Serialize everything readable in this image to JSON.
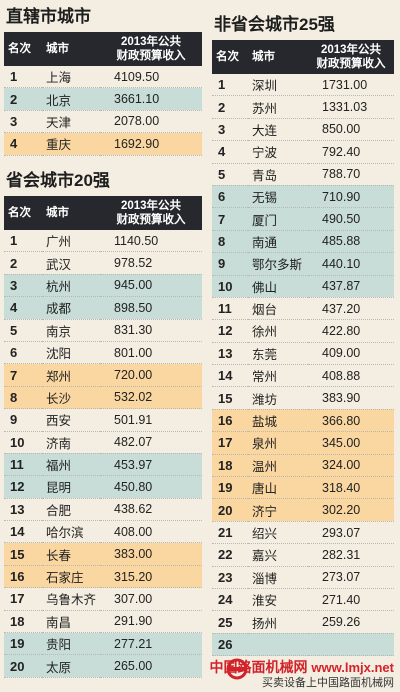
{
  "chart_data": [
    {
      "type": "table",
      "title": "直辖市城市",
      "columns": [
        "名次",
        "城市",
        "2013年公共财政预算收入"
      ],
      "rows": [
        {
          "rank": "1",
          "city": "上海",
          "value": "4109.50",
          "hl": "none"
        },
        {
          "rank": "2",
          "city": "北京",
          "value": "3661.10",
          "hl": "teal"
        },
        {
          "rank": "3",
          "city": "天津",
          "value": "2078.00",
          "hl": "none"
        },
        {
          "rank": "4",
          "city": "重庆",
          "value": "1692.90",
          "hl": "orange"
        }
      ]
    },
    {
      "type": "table",
      "title": "省会城市20强",
      "columns": [
        "名次",
        "城市",
        "2013年公共财政预算收入"
      ],
      "rows": [
        {
          "rank": "1",
          "city": "广州",
          "value": "1140.50",
          "hl": "none"
        },
        {
          "rank": "2",
          "city": "武汉",
          "value": "978.52",
          "hl": "none"
        },
        {
          "rank": "3",
          "city": "杭州",
          "value": "945.00",
          "hl": "teal"
        },
        {
          "rank": "4",
          "city": "成都",
          "value": "898.50",
          "hl": "teal"
        },
        {
          "rank": "5",
          "city": "南京",
          "value": "831.30",
          "hl": "none"
        },
        {
          "rank": "6",
          "city": "沈阳",
          "value": "801.00",
          "hl": "none"
        },
        {
          "rank": "7",
          "city": "郑州",
          "value": "720.00",
          "hl": "orange"
        },
        {
          "rank": "8",
          "city": "长沙",
          "value": "532.02",
          "hl": "orange"
        },
        {
          "rank": "9",
          "city": "西安",
          "value": "501.91",
          "hl": "none"
        },
        {
          "rank": "10",
          "city": "济南",
          "value": "482.07",
          "hl": "none"
        },
        {
          "rank": "11",
          "city": "福州",
          "value": "453.97",
          "hl": "teal"
        },
        {
          "rank": "12",
          "city": "昆明",
          "value": "450.80",
          "hl": "teal"
        },
        {
          "rank": "13",
          "city": "合肥",
          "value": "438.62",
          "hl": "none"
        },
        {
          "rank": "14",
          "city": "哈尔滨",
          "value": "408.00",
          "hl": "none"
        },
        {
          "rank": "15",
          "city": "长春",
          "value": "383.00",
          "hl": "orange"
        },
        {
          "rank": "16",
          "city": "石家庄",
          "value": "315.20",
          "hl": "orange"
        },
        {
          "rank": "17",
          "city": "乌鲁木齐",
          "value": "307.00",
          "hl": "none"
        },
        {
          "rank": "18",
          "city": "南昌",
          "value": "291.90",
          "hl": "none"
        },
        {
          "rank": "19",
          "city": "贵阳",
          "value": "277.21",
          "hl": "teal"
        },
        {
          "rank": "20",
          "city": "太原",
          "value": "265.00",
          "hl": "teal"
        }
      ]
    },
    {
      "type": "table",
      "title": "非省会城市25强",
      "columns": [
        "名次",
        "城市",
        "2013年公共财政预算收入"
      ],
      "rows": [
        {
          "rank": "1",
          "city": "深圳",
          "value": "1731.00",
          "hl": "none"
        },
        {
          "rank": "2",
          "city": "苏州",
          "value": "1331.03",
          "hl": "none"
        },
        {
          "rank": "3",
          "city": "大连",
          "value": "850.00",
          "hl": "none"
        },
        {
          "rank": "4",
          "city": "宁波",
          "value": "792.40",
          "hl": "none"
        },
        {
          "rank": "5",
          "city": "青岛",
          "value": "788.70",
          "hl": "none"
        },
        {
          "rank": "6",
          "city": "无锡",
          "value": "710.90",
          "hl": "teal"
        },
        {
          "rank": "7",
          "city": "厦门",
          "value": "490.50",
          "hl": "teal"
        },
        {
          "rank": "8",
          "city": "南通",
          "value": "485.88",
          "hl": "teal"
        },
        {
          "rank": "9",
          "city": "鄂尔多斯",
          "value": "440.10",
          "hl": "teal"
        },
        {
          "rank": "10",
          "city": "佛山",
          "value": "437.87",
          "hl": "teal"
        },
        {
          "rank": "11",
          "city": "烟台",
          "value": "437.20",
          "hl": "none"
        },
        {
          "rank": "12",
          "city": "徐州",
          "value": "422.80",
          "hl": "none"
        },
        {
          "rank": "13",
          "city": "东莞",
          "value": "409.00",
          "hl": "none"
        },
        {
          "rank": "14",
          "city": "常州",
          "value": "408.88",
          "hl": "none"
        },
        {
          "rank": "15",
          "city": "潍坊",
          "value": "383.90",
          "hl": "none"
        },
        {
          "rank": "16",
          "city": "盐城",
          "value": "366.80",
          "hl": "orange"
        },
        {
          "rank": "17",
          "city": "泉州",
          "value": "345.00",
          "hl": "orange"
        },
        {
          "rank": "18",
          "city": "温州",
          "value": "324.00",
          "hl": "orange"
        },
        {
          "rank": "19",
          "city": "唐山",
          "value": "318.40",
          "hl": "orange"
        },
        {
          "rank": "20",
          "city": "济宁",
          "value": "302.20",
          "hl": "orange"
        },
        {
          "rank": "21",
          "city": "绍兴",
          "value": "293.07",
          "hl": "none"
        },
        {
          "rank": "22",
          "city": "嘉兴",
          "value": "282.31",
          "hl": "none"
        },
        {
          "rank": "23",
          "city": "淄博",
          "value": "273.07",
          "hl": "none"
        },
        {
          "rank": "24",
          "city": "淮安",
          "value": "271.40",
          "hl": "none"
        },
        {
          "rank": "25",
          "city": "扬州",
          "value": "259.26",
          "hl": "none"
        },
        {
          "rank": "26",
          "city": "",
          "value": "",
          "hl": "teal"
        }
      ]
    }
  ],
  "footer": {
    "site_name": "中国路面机械网",
    "site_url": "www.lmjx.net",
    "slogan": "买卖设备上中国路面机械网"
  },
  "colors": {
    "header_bg": "#27282d",
    "teal_highlight": "#c8ddd7",
    "orange_highlight": "#fad6a0",
    "page_bg": "#f3eee1",
    "brand_red": "#d2232a"
  }
}
